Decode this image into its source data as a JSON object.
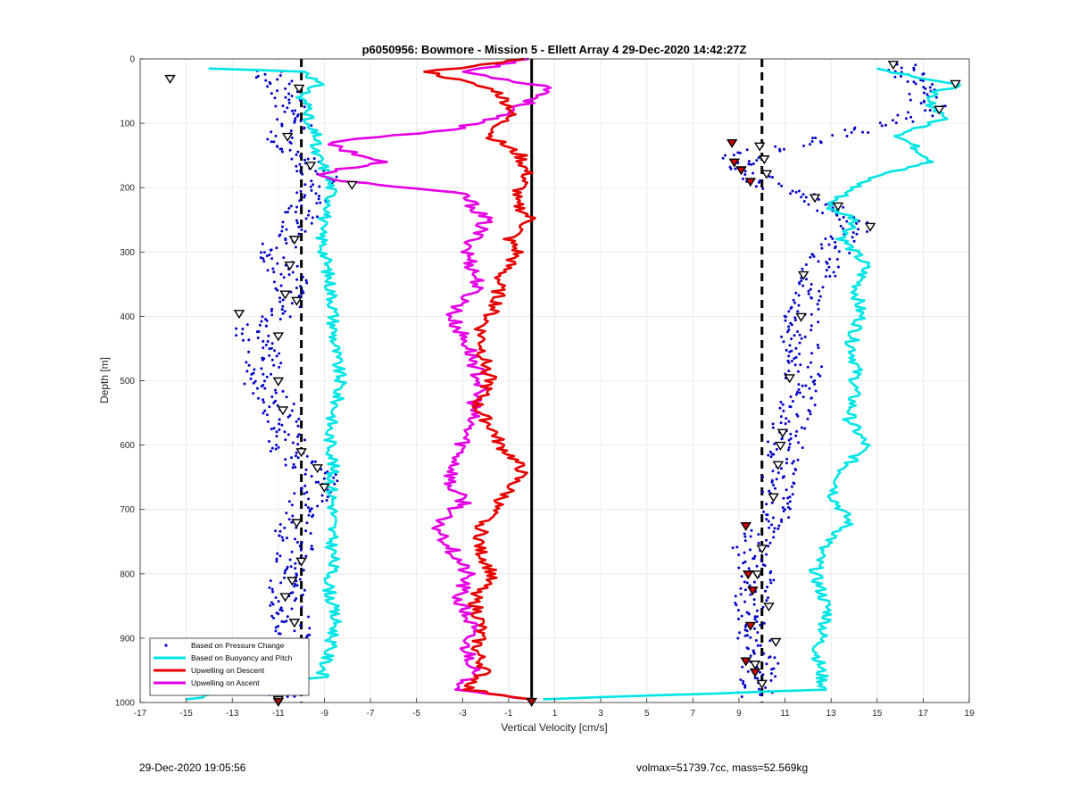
{
  "chart_data": {
    "type": "line",
    "title": "p6050956: Bowmore - Mission 5 - Ellett Array 4 29-Dec-2020 14:42:27Z",
    "xlabel": "Vertical Velocity [cm/s]",
    "ylabel": "Depth [m]",
    "xlim": [
      -17,
      19
    ],
    "ylim": [
      0,
      1000
    ],
    "y_reversed": true,
    "grid": true,
    "xticks": [
      -17,
      -15,
      -13,
      -11,
      -9,
      -7,
      -5,
      -3,
      -1,
      1,
      3,
      5,
      7,
      9,
      11,
      13,
      15,
      17,
      19
    ],
    "yticks": [
      0,
      100,
      200,
      300,
      400,
      500,
      600,
      700,
      800,
      900,
      1000
    ],
    "legend_position": "bottom-left",
    "reference_lines": [
      {
        "orientation": "vertical",
        "x": -10,
        "style": "dashed",
        "color": "#000000"
      },
      {
        "orientation": "vertical",
        "x": 10,
        "style": "dashed",
        "color": "#000000"
      },
      {
        "orientation": "vertical",
        "x": 0,
        "style": "solid",
        "color": "#000000"
      }
    ],
    "series": [
      {
        "name": "Based on Pressure Change",
        "style": "points",
        "color": "#0000cc",
        "branches": [
          {
            "x": [
              -11.5,
              -10.5,
              -10.2,
              -10.8,
              -10.0,
              -9.2,
              -9.5,
              -10.4,
              -11.2,
              -10.6,
              -10.3,
              -12.2,
              -11.6,
              -11.8,
              -11.0,
              -10.7,
              -10.5,
              -9.0,
              -9.6,
              -10.4,
              -10.3,
              -10.7,
              -10.6,
              -10.4,
              -10.5,
              -10.8
            ],
            "y": [
              20,
              60,
              100,
              120,
              150,
              180,
              220,
              260,
              300,
              340,
              380,
              420,
              460,
              500,
              540,
              580,
              620,
              650,
              680,
              720,
              760,
              800,
              850,
              880,
              920,
              990
            ]
          },
          {
            "x": [
              16.0,
              16.8,
              17.4,
              13.5,
              9.0,
              9.5,
              10.5,
              12.5,
              14.0,
              13.0,
              12.0,
              11.6,
              11.8,
              11.5,
              11.0,
              10.7,
              10.8,
              10.3,
              9.5,
              9.8,
              9.6,
              9.5,
              10.0,
              9.8,
              9.7
            ],
            "y": [
              10,
              40,
              80,
              120,
              150,
              180,
              200,
              220,
              260,
              300,
              360,
              420,
              480,
              540,
              600,
              660,
              700,
              720,
              760,
              800,
              840,
              880,
              920,
              960,
              990
            ]
          }
        ]
      },
      {
        "name": "Based on Buoyancy and Pitch",
        "style": "line",
        "color": "#00e5e5",
        "branches": [
          {
            "x": [
              -14.0,
              -9.7,
              -9.3,
              -10.1,
              -9.5,
              -9.9,
              -9.3,
              -9.5,
              -9.0,
              -8.7,
              -8.7,
              -9.2,
              -9.0,
              -8.8,
              -8.6,
              -8.6,
              -8.5,
              -8.3,
              -8.5,
              -8.8,
              -8.6,
              -8.7,
              -8.6,
              -8.7,
              -8.6,
              -8.8,
              -8.5,
              -9.1,
              -15.0
            ],
            "y": [
              15,
              20,
              40,
              60,
              80,
              100,
              120,
              140,
              170,
              200,
              230,
              260,
              300,
              340,
              380,
              420,
              460,
              500,
              540,
              580,
              620,
              660,
              700,
              740,
              780,
              820,
              880,
              960,
              995
            ]
          },
          {
            "x": [
              15.0,
              18.5,
              17.0,
              18.0,
              16.0,
              17.5,
              15.0,
              14.0,
              12.8,
              14.2,
              13.5,
              14.5,
              14.1,
              14.3,
              13.9,
              14.1,
              14.0,
              13.8,
              14.5,
              13.5,
              13.1,
              13.8,
              12.6,
              12.3,
              12.9,
              12.4,
              12.7,
              0.5
            ],
            "y": [
              15,
              40,
              60,
              90,
              120,
              160,
              180,
              200,
              230,
              250,
              280,
              320,
              360,
              400,
              440,
              480,
              520,
              560,
              600,
              640,
              680,
              720,
              760,
              800,
              860,
              920,
              980,
              995
            ]
          }
        ]
      },
      {
        "name": "Upwelling on Descent",
        "style": "line",
        "color": "#e60000",
        "x": [
          -0.2,
          -4.5,
          -1.5,
          -0.8,
          -1.8,
          -0.5,
          -0.2,
          -0.8,
          0.0,
          -1.0,
          -0.6,
          -1.4,
          -1.5,
          -2.2,
          -2.1,
          -1.8,
          -2.4,
          -1.6,
          -1.4,
          -0.8,
          -0.4,
          -1.2,
          -2.1,
          -2.3,
          -1.7,
          -2.5,
          -2.2,
          -2.4,
          -2.0,
          -2.8,
          0.0
        ],
        "y": [
          0,
          20,
          50,
          80,
          120,
          150,
          180,
          220,
          250,
          280,
          300,
          340,
          380,
          420,
          460,
          500,
          540,
          580,
          600,
          620,
          640,
          680,
          720,
          760,
          800,
          840,
          880,
          920,
          950,
          980,
          995
        ]
      },
      {
        "name": "Upwelling on Ascent",
        "style": "line",
        "color": "#e600e6",
        "x": [
          0.0,
          -3.0,
          1.0,
          -0.8,
          -3.3,
          -9.0,
          -6.5,
          -9.5,
          -8.0,
          -3.0,
          -2.0,
          -2.8,
          -2.3,
          -3.5,
          -2.7,
          -2.2,
          -2.5,
          -2.8,
          -3.2,
          -3.6,
          -2.9,
          -4.2,
          -3.5,
          -2.8,
          -3.2,
          -2.6,
          -2.9,
          -2.5,
          -2.7,
          -3.0,
          0.0
        ],
        "y": [
          0,
          20,
          45,
          80,
          110,
          130,
          160,
          180,
          190,
          210,
          250,
          300,
          350,
          400,
          450,
          500,
          540,
          580,
          620,
          660,
          690,
          720,
          760,
          800,
          840,
          880,
          910,
          940,
          960,
          980,
          995
        ]
      },
      {
        "name": "",
        "style": "triangle-markers",
        "color": "#000000",
        "x": [
          -15.7,
          -10.1,
          -10.6,
          -9.6,
          -7.8,
          -10.3,
          -10.5,
          -10.7,
          -10.2,
          -12.7,
          -11.0,
          -11.0,
          -10.8,
          -10.0,
          -9.3,
          -9.0,
          -10.2,
          -10.0,
          -10.4,
          -10.7,
          -10.3,
          -11.0,
          15.7,
          18.4,
          17.7,
          9.9,
          10.1,
          10.2,
          12.3,
          13.3,
          14.7,
          11.8,
          11.7,
          11.2,
          10.9,
          10.8,
          10.7,
          10.5,
          10.0,
          9.8,
          10.3,
          10.6,
          9.7,
          10.0
        ],
        "y": [
          30,
          45,
          120,
          165,
          195,
          280,
          320,
          365,
          375,
          395,
          430,
          500,
          545,
          610,
          635,
          665,
          720,
          780,
          810,
          835,
          875,
          995,
          8,
          38,
          78,
          135,
          155,
          178,
          215,
          228,
          260,
          335,
          400,
          495,
          580,
          600,
          630,
          680,
          760,
          800,
          850,
          905,
          940,
          970
        ]
      },
      {
        "name": "",
        "style": "red-triangle-markers",
        "color": "#cc0000",
        "x": [
          8.7,
          8.8,
          9.1,
          9.5,
          9.3,
          9.4,
          9.6,
          9.5,
          9.3,
          9.7,
          0.0,
          -11.0
        ],
        "y": [
          130,
          160,
          172,
          190,
          725,
          800,
          825,
          880,
          935,
          952,
          998,
          998
        ]
      }
    ]
  },
  "footer": {
    "left": "29-Dec-2020 19:05:56",
    "right": "volmax=51739.7cc, mass=52.569kg"
  }
}
